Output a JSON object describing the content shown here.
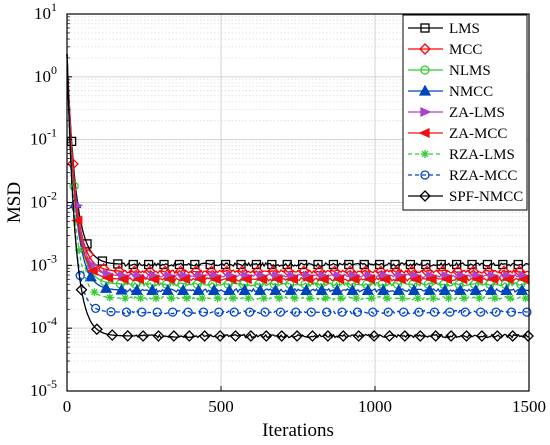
{
  "chart_data": {
    "type": "line",
    "xlabel": "Iterations",
    "ylabel": "MSD",
    "xlim": [
      0,
      1500
    ],
    "ylim_exponents": [
      -5,
      1
    ],
    "yscale": "log",
    "grid": true,
    "legend_position": "top-right",
    "x_ticks": [
      0,
      500,
      1000,
      1500
    ],
    "y_ticks": [
      {
        "base": "10",
        "exp": "-5",
        "exponent": -5
      },
      {
        "base": "10",
        "exp": "-4",
        "exponent": -4
      },
      {
        "base": "10",
        "exp": "-3",
        "exponent": -3
      },
      {
        "base": "10",
        "exp": "-2",
        "exponent": -2
      },
      {
        "base": "10",
        "exp": "-1",
        "exponent": -1
      },
      {
        "base": "10",
        "exp": "0",
        "exponent": 0
      },
      {
        "base": "10",
        "exp": "1",
        "exponent": 1
      }
    ],
    "series": [
      {
        "name": "LMS",
        "color": "#000000",
        "marker": "square",
        "dash": "solid",
        "start": 2.3,
        "steady": 0.00103,
        "settle": 175,
        "decay_tau": 28
      },
      {
        "name": "MCC",
        "color": "#ff0000",
        "marker": "diamond",
        "dash": "solid",
        "start": 2.3,
        "steady": 0.0008,
        "settle": 175,
        "decay_tau": 27
      },
      {
        "name": "NLMS",
        "color": "#33cc33",
        "marker": "circle",
        "dash": "solid",
        "start": 2.3,
        "steady": 0.0005,
        "settle": 180,
        "decay_tau": 27
      },
      {
        "name": "NMCC",
        "color": "#0044bb",
        "marker": "triangle",
        "dash": "solid",
        "start": 2.3,
        "steady": 0.0004,
        "settle": 180,
        "decay_tau": 27
      },
      {
        "name": "ZA-LMS",
        "color": "#aa44cc",
        "marker": "triright",
        "dash": "solid",
        "start": 2.3,
        "steady": 0.00068,
        "settle": 175,
        "decay_tau": 27
      },
      {
        "name": "ZA-MCC",
        "color": "#ee1111",
        "marker": "trileft",
        "dash": "solid",
        "start": 2.3,
        "steady": 0.0006,
        "settle": 175,
        "decay_tau": 26
      },
      {
        "name": "RZA-LMS",
        "color": "#33cc33",
        "marker": "asterisk",
        "dash": "dashed",
        "start": 2.3,
        "steady": 0.0003,
        "settle": 170,
        "decay_tau": 24
      },
      {
        "name": "RZA-MCC",
        "color": "#0044cc",
        "marker": "circle",
        "dash": "dashed",
        "start": 2.3,
        "steady": 0.00018,
        "settle": 165,
        "decay_tau": 22
      },
      {
        "name": "SPF-NMCC",
        "color": "#000000",
        "marker": "diamond",
        "dash": "solid",
        "start": 2.3,
        "steady": 7.5e-05,
        "settle": 220,
        "decay_tau": 26
      }
    ]
  }
}
